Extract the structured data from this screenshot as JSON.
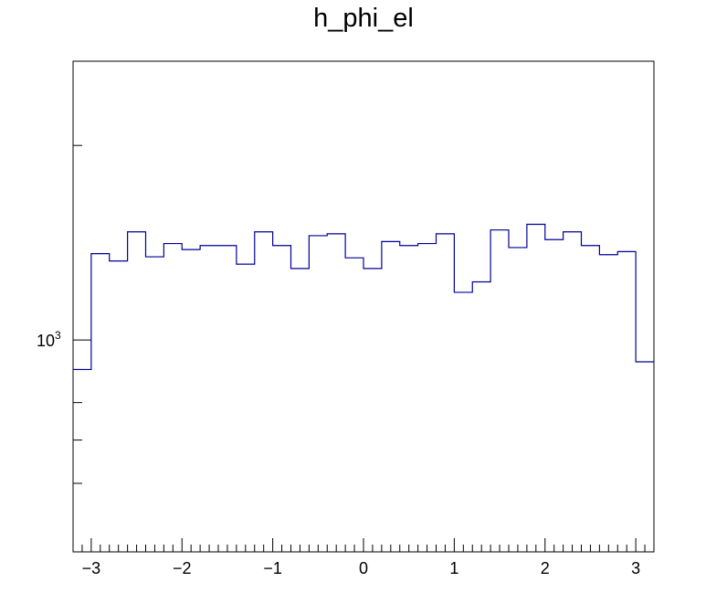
{
  "chart_data": {
    "type": "histogram",
    "title": "h_phi_el",
    "xlabel": "",
    "ylabel": "",
    "xlim": [
      -3.2,
      3.2
    ],
    "ylim": [
      470,
      2700
    ],
    "y_scale": "log",
    "bin_edges": [
      -3.2,
      -3.0,
      -2.8,
      -2.6,
      -2.4,
      -2.2,
      -2.0,
      -1.8,
      -1.6,
      -1.4,
      -1.2,
      -1.0,
      -0.8,
      -0.6,
      -0.4,
      -0.2,
      0.0,
      0.2,
      0.4,
      0.6,
      0.8,
      1.0,
      1.2,
      1.4,
      1.6,
      1.8,
      2.0,
      2.2,
      2.4,
      2.6,
      2.8,
      3.0,
      3.2
    ],
    "values": [
      900,
      1360,
      1325,
      1470,
      1345,
      1410,
      1380,
      1400,
      1400,
      1310,
      1470,
      1400,
      1290,
      1450,
      1460,
      1340,
      1290,
      1420,
      1400,
      1410,
      1460,
      1185,
      1230,
      1480,
      1390,
      1510,
      1430,
      1470,
      1400,
      1355,
      1370,
      925
    ],
    "x_ticks": [
      {
        "value": -3,
        "label": "−3"
      },
      {
        "value": -2,
        "label": "−2"
      },
      {
        "value": -1,
        "label": "−1"
      },
      {
        "value": 0,
        "label": "0"
      },
      {
        "value": 1,
        "label": "1"
      },
      {
        "value": 2,
        "label": "2"
      },
      {
        "value": 3,
        "label": "3"
      }
    ],
    "y_major_ticks": [
      1000
    ],
    "y_minor_ticks": [
      600,
      700,
      800,
      900,
      2000
    ],
    "y_tick_label_base": "10",
    "y_tick_label_exp": "3",
    "line_color": "#000099",
    "frame_color": "#000000"
  }
}
